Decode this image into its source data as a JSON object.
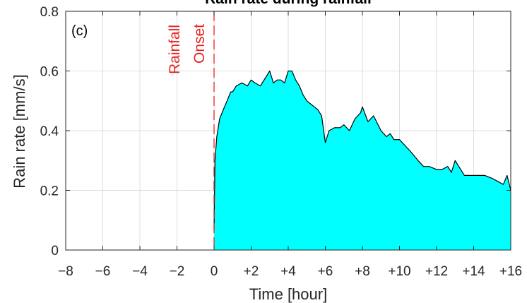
{
  "chart_data": {
    "type": "area",
    "title": "Rain rate during rainfall",
    "panel_label": "(c)",
    "xlabel": "Time [hour]",
    "ylabel": "Rain rate [mm/s]",
    "xlim": [
      -8,
      16
    ],
    "ylim": [
      0,
      0.8
    ],
    "grid": true,
    "x_ticks": [
      -8,
      -6,
      -4,
      -2,
      0,
      2,
      4,
      6,
      8,
      10,
      12,
      14,
      16
    ],
    "x_tick_labels": [
      "−8",
      "−6",
      "−4",
      "−2",
      "0",
      "+2",
      "+4",
      "+6",
      "+8",
      "+10",
      "+12",
      "+14",
      "+16"
    ],
    "y_ticks": [
      0,
      0.2,
      0.4,
      0.6,
      0.8
    ],
    "y_tick_labels": [
      "0",
      "0.2",
      "0.4",
      "0.6",
      "0.8"
    ],
    "fill_color": "#00ffff",
    "line_color": "#000000",
    "onset": {
      "x": 0,
      "label_line1": "Rainfall",
      "label_line2": "Onset",
      "color": "#e8231f"
    },
    "series": [
      {
        "x": [
          0,
          0.05,
          0.15,
          0.3,
          0.5,
          0.7,
          0.9,
          1.0,
          1.2,
          1.5,
          1.8,
          2.0,
          2.2,
          2.5,
          2.8,
          3.0,
          3.2,
          3.4,
          3.6,
          3.8,
          4.0,
          4.2,
          4.4,
          4.6,
          4.8,
          5.0,
          5.2,
          5.4,
          5.6,
          5.8,
          6.0,
          6.2,
          6.5,
          6.8,
          7.0,
          7.3,
          7.6,
          7.9,
          8.0,
          8.3,
          8.6,
          9.0,
          9.3,
          9.5,
          9.7,
          10.0,
          10.3,
          10.6,
          11.0,
          11.3,
          11.6,
          12.0,
          12.3,
          12.6,
          12.8,
          13.0,
          13.2,
          13.5,
          14.0,
          14.3,
          14.6,
          15.0,
          15.3,
          15.6,
          15.8,
          16.0
        ],
        "y": [
          0.07,
          0.3,
          0.38,
          0.44,
          0.47,
          0.5,
          0.53,
          0.53,
          0.55,
          0.56,
          0.55,
          0.57,
          0.56,
          0.55,
          0.58,
          0.6,
          0.56,
          0.57,
          0.57,
          0.56,
          0.6,
          0.6,
          0.57,
          0.55,
          0.52,
          0.5,
          0.49,
          0.48,
          0.47,
          0.45,
          0.36,
          0.4,
          0.41,
          0.41,
          0.42,
          0.4,
          0.44,
          0.46,
          0.48,
          0.43,
          0.45,
          0.4,
          0.38,
          0.39,
          0.37,
          0.37,
          0.35,
          0.33,
          0.3,
          0.28,
          0.28,
          0.27,
          0.27,
          0.28,
          0.26,
          0.3,
          0.28,
          0.25,
          0.25,
          0.25,
          0.25,
          0.24,
          0.23,
          0.22,
          0.25,
          0.2
        ]
      }
    ]
  }
}
